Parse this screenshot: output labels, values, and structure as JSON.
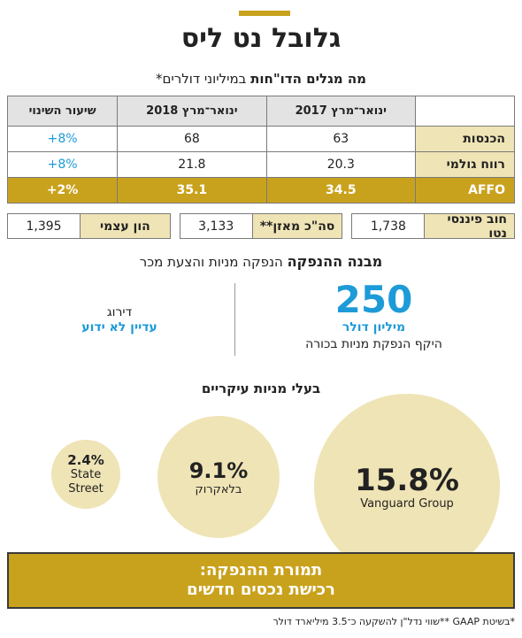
{
  "title": "גלובל נט ליס",
  "subtitle": {
    "bold": "מה מגלים הדו\"חות",
    "rest": " במיליוני דולרים*"
  },
  "table": {
    "headers": [
      "ינואר־מרץ 2017",
      "ינואר־מרץ 2018",
      "שיעור השינוי"
    ],
    "rows": [
      {
        "label": "הכנסות",
        "v2017": "63",
        "v2018": "68",
        "change": "+8%"
      },
      {
        "label": "רווח גולמי",
        "v2017": "20.3",
        "v2018": "21.8",
        "change": "+8%"
      },
      {
        "label": "AFFO",
        "v2017": "34.5",
        "v2018": "35.1",
        "change": "+2%"
      }
    ]
  },
  "metrics": [
    {
      "label": "חוב פיננסי נטו",
      "value": "1,738"
    },
    {
      "label": "סה\"כ מאזן**",
      "value": "3,133"
    },
    {
      "label": "הון עצמי",
      "value": "1,395"
    }
  ],
  "structure": {
    "title_bold": "מבנה ההנפקה",
    "title_rest": " הנפקה מניות והצעת מכר"
  },
  "issue": {
    "amount": "250",
    "unit": "מיליון דולר",
    "description": "היקף הנפקת מניות בכורה"
  },
  "rating": {
    "label": "דירוג",
    "value": "עדיין לא ידוע"
  },
  "holders": {
    "title": "בעלי מניות עיקריים",
    "items": [
      {
        "pct": "15.8%",
        "name": "Vanguard Group"
      },
      {
        "pct": "9.1%",
        "name": "בלאקרוק"
      },
      {
        "pct": "2.4%",
        "name": "State Street"
      }
    ]
  },
  "purpose": {
    "line1": "תמורת ההנפקה:",
    "line2": "רכישת נכסים חדשים"
  },
  "footnote": "*בשיטת GAAP **שווי נדל\"ן להשקעה כ־3.5 מיליארד דולר",
  "colors": {
    "gold": "#c9a21d",
    "beige": "#efe4b5",
    "blue": "#1d9bd8"
  }
}
